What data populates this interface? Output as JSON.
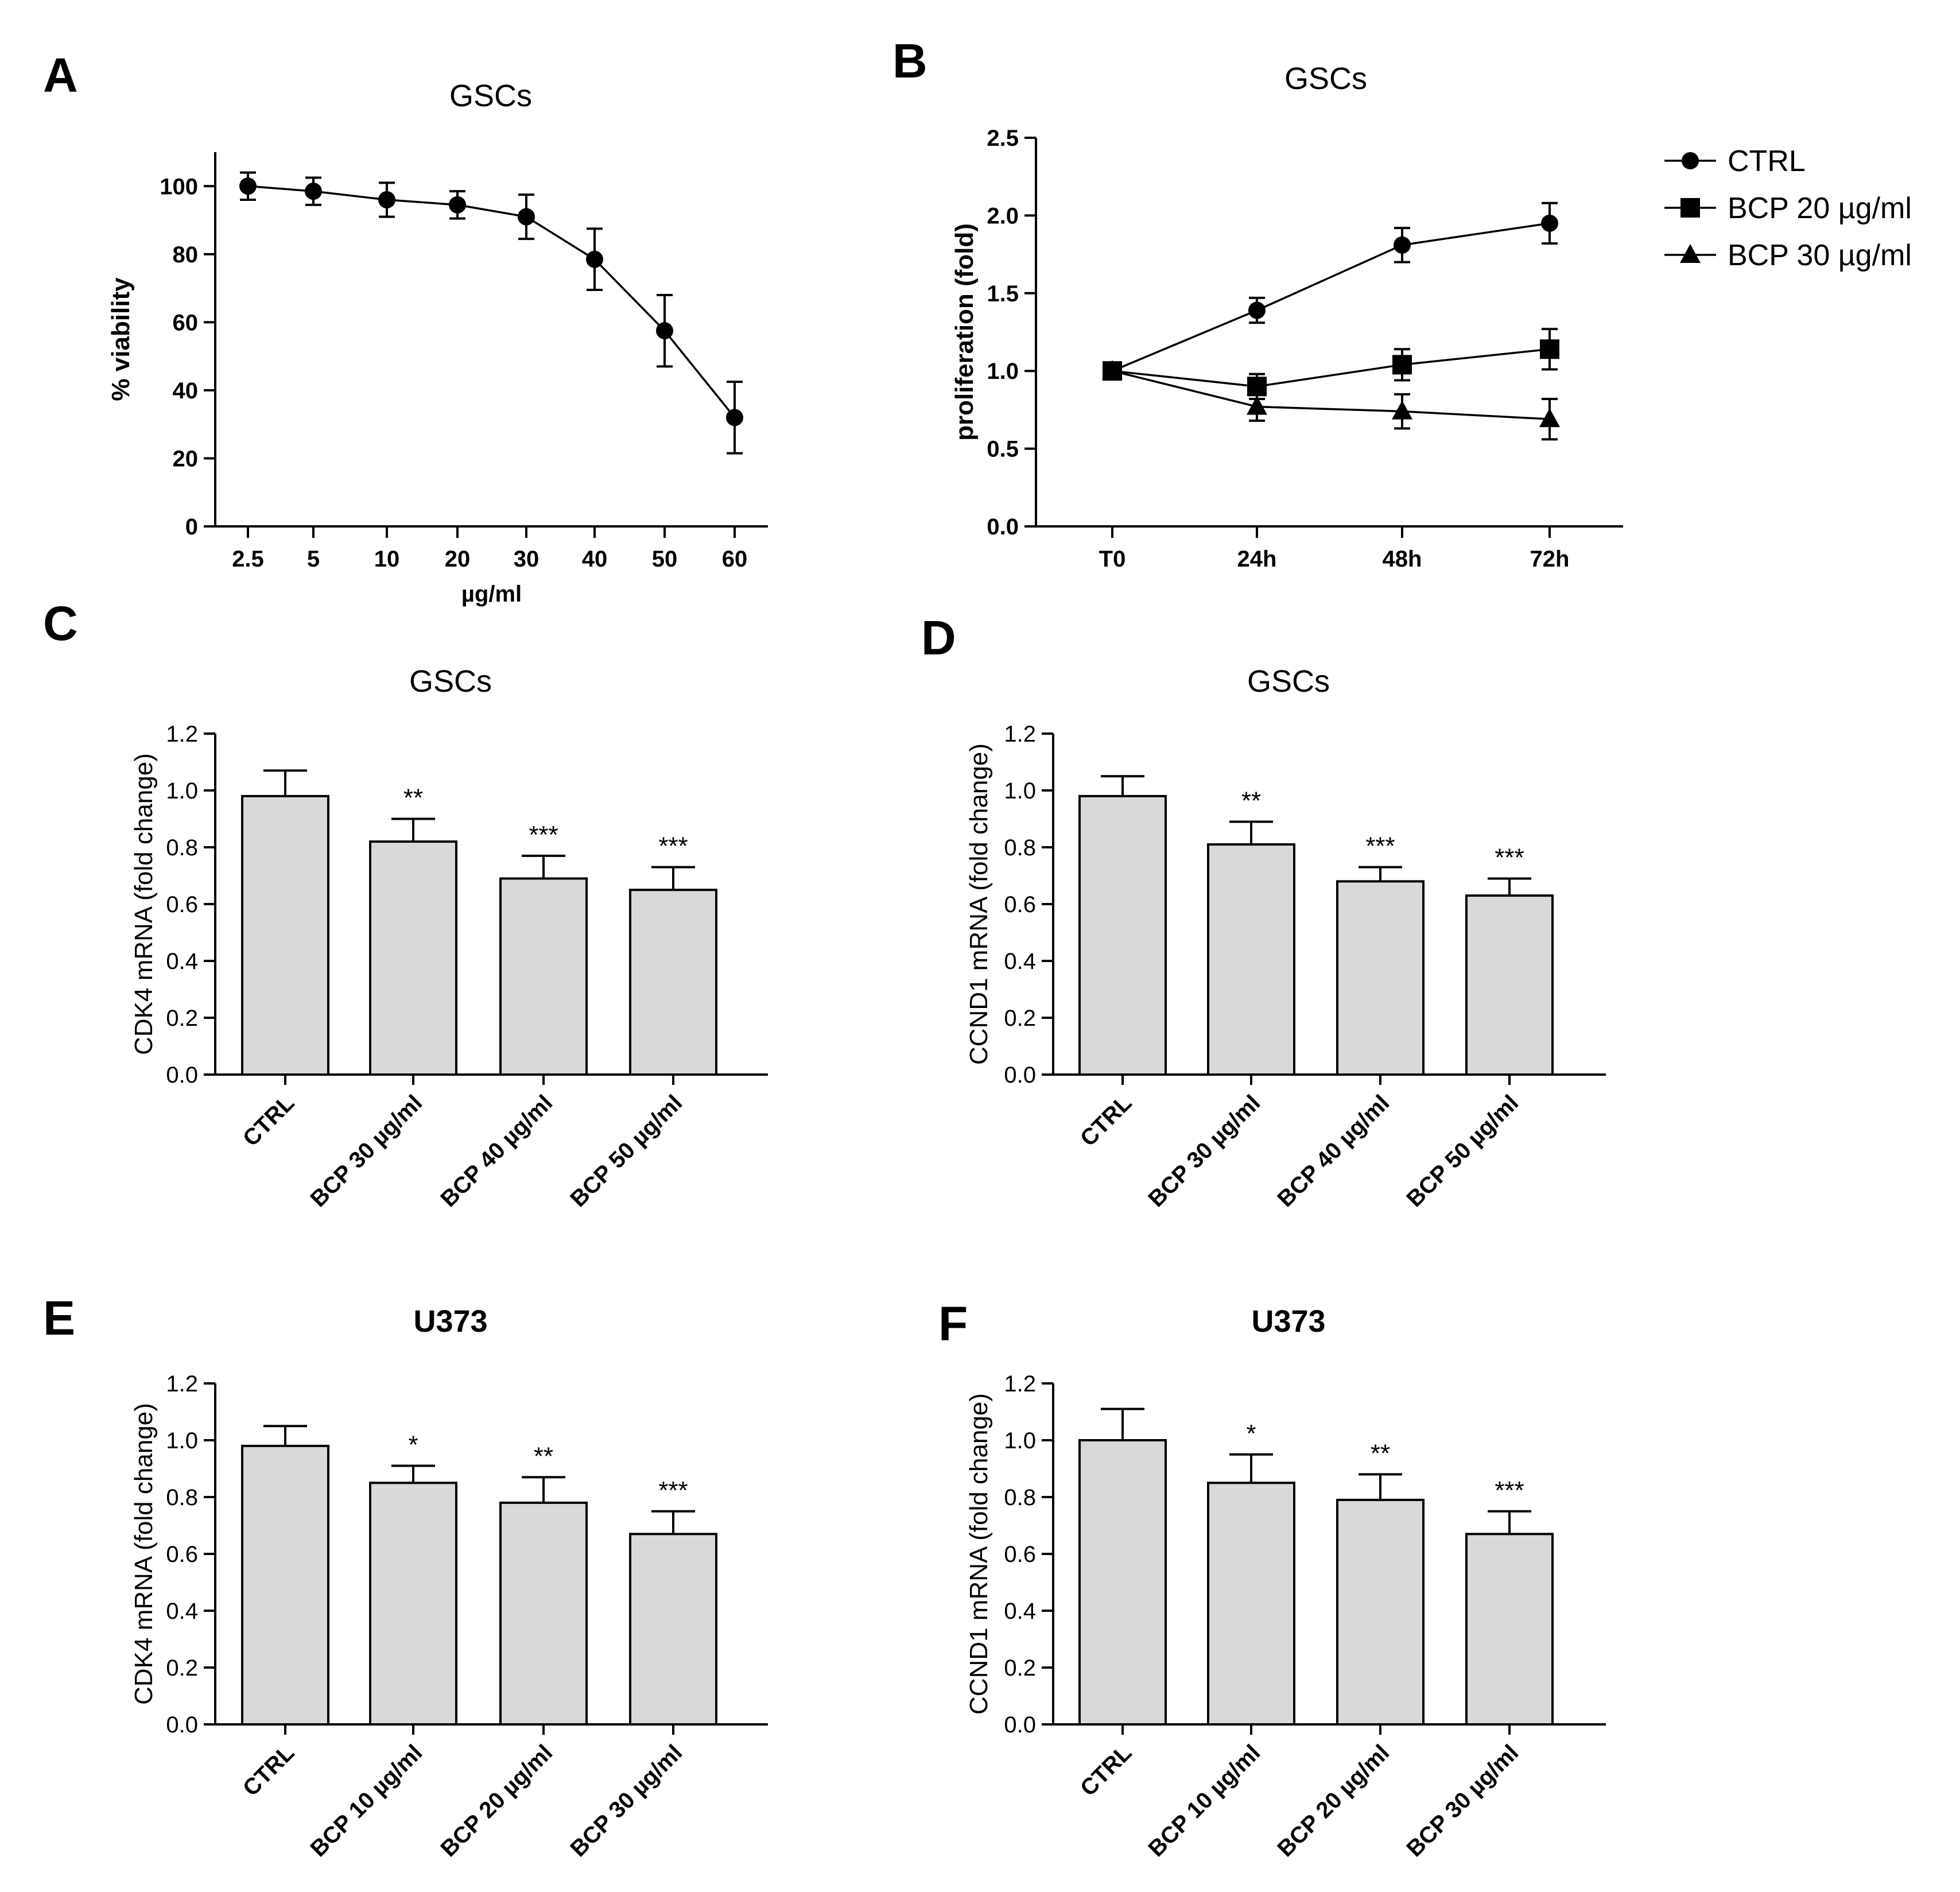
{
  "chart_data": [
    {
      "panel": "A",
      "type": "line",
      "title": "GSCs",
      "xlabel": "µg/ml",
      "ylabel": "% viability",
      "categories": [
        "2.5",
        "5",
        "10",
        "20",
        "30",
        "40",
        "50",
        "60"
      ],
      "series": [
        {
          "values": [
            100,
            98.5,
            96,
            94.5,
            91,
            78.5,
            57.5,
            32
          ],
          "errors": [
            4,
            4,
            5,
            4,
            6.5,
            9,
            10.5,
            10.5
          ]
        }
      ],
      "yticks": [
        "0",
        "20",
        "40",
        "60",
        "80",
        "100"
      ],
      "ylim": [
        0,
        110
      ],
      "marker": "circle"
    },
    {
      "panel": "B",
      "type": "line",
      "title": "GSCs",
      "xlabel": "",
      "ylabel": "proliferation (fold)",
      "categories": [
        "T0",
        "24h",
        "48h",
        "72h"
      ],
      "series": [
        {
          "name": "CTRL",
          "marker": "circle",
          "values": [
            1.0,
            1.39,
            1.81,
            1.95
          ],
          "errors": [
            0,
            0.08,
            0.11,
            0.13
          ]
        },
        {
          "name": "BCP 20 µg/ml",
          "marker": "square",
          "values": [
            1.0,
            0.9,
            1.04,
            1.14
          ],
          "errors": [
            0,
            0.08,
            0.1,
            0.13
          ]
        },
        {
          "name": "BCP 30 µg/ml",
          "marker": "triangle",
          "values": [
            1.0,
            0.77,
            0.74,
            0.69
          ],
          "errors": [
            0,
            0.09,
            0.11,
            0.13
          ]
        }
      ],
      "yticks": [
        "0.0",
        "0.5",
        "1.0",
        "1.5",
        "2.0",
        "2.5"
      ],
      "ylim": [
        0,
        2.5
      ],
      "legend_position": "right"
    },
    {
      "panel": "C",
      "type": "bar",
      "title": "GSCs",
      "ylabel": "CDK4 mRNA (fold change)",
      "categories": [
        "CTRL",
        "BCP 30 µg/ml",
        "BCP 40 µg/ml",
        "BCP 50 µg/ml"
      ],
      "values": [
        0.98,
        0.82,
        0.69,
        0.65
      ],
      "errors": [
        0.09,
        0.08,
        0.08,
        0.08
      ],
      "significance": [
        "",
        "**",
        "***",
        "***"
      ],
      "yticks": [
        "0.0",
        "0.2",
        "0.4",
        "0.6",
        "0.8",
        "1.0",
        "1.2"
      ],
      "ylim": [
        0,
        1.2
      ]
    },
    {
      "panel": "D",
      "type": "bar",
      "title": "GSCs",
      "ylabel": "CCND1 mRNA (fold change)",
      "categories": [
        "CTRL",
        "BCP 30 µg/ml",
        "BCP 40 µg/ml",
        "BCP 50 µg/ml"
      ],
      "values": [
        0.98,
        0.81,
        0.68,
        0.63
      ],
      "errors": [
        0.07,
        0.08,
        0.05,
        0.06
      ],
      "significance": [
        "",
        "**",
        "***",
        "***"
      ],
      "yticks": [
        "0.0",
        "0.2",
        "0.4",
        "0.6",
        "0.8",
        "1.0",
        "1.2"
      ],
      "ylim": [
        0,
        1.2
      ]
    },
    {
      "panel": "E",
      "type": "bar",
      "title": "U373",
      "ylabel": "CDK4 mRNA (fold change)",
      "categories": [
        "CTRL",
        "BCP 10 µg/ml",
        "BCP 20 µg/ml",
        "BCP 30 µg/ml"
      ],
      "values": [
        0.98,
        0.85,
        0.78,
        0.67
      ],
      "errors": [
        0.07,
        0.06,
        0.09,
        0.08
      ],
      "significance": [
        "",
        "*",
        "**",
        "***"
      ],
      "yticks": [
        "0.0",
        "0.2",
        "0.4",
        "0.6",
        "0.8",
        "1.0",
        "1.2"
      ],
      "ylim": [
        0,
        1.2
      ]
    },
    {
      "panel": "F",
      "type": "bar",
      "title": "U373",
      "ylabel": "CCND1 mRNA (fold change)",
      "categories": [
        "CTRL",
        "BCP 10 µg/ml",
        "BCP 20 µg/ml",
        "BCP 30 µg/ml"
      ],
      "values": [
        1.0,
        0.85,
        0.79,
        0.67
      ],
      "errors": [
        0.11,
        0.1,
        0.09,
        0.08
      ],
      "significance": [
        "",
        "*",
        "**",
        "***"
      ],
      "yticks": [
        "0.0",
        "0.2",
        "0.4",
        "0.6",
        "0.8",
        "1.0",
        "1.2"
      ],
      "ylim": [
        0,
        1.2
      ]
    }
  ]
}
